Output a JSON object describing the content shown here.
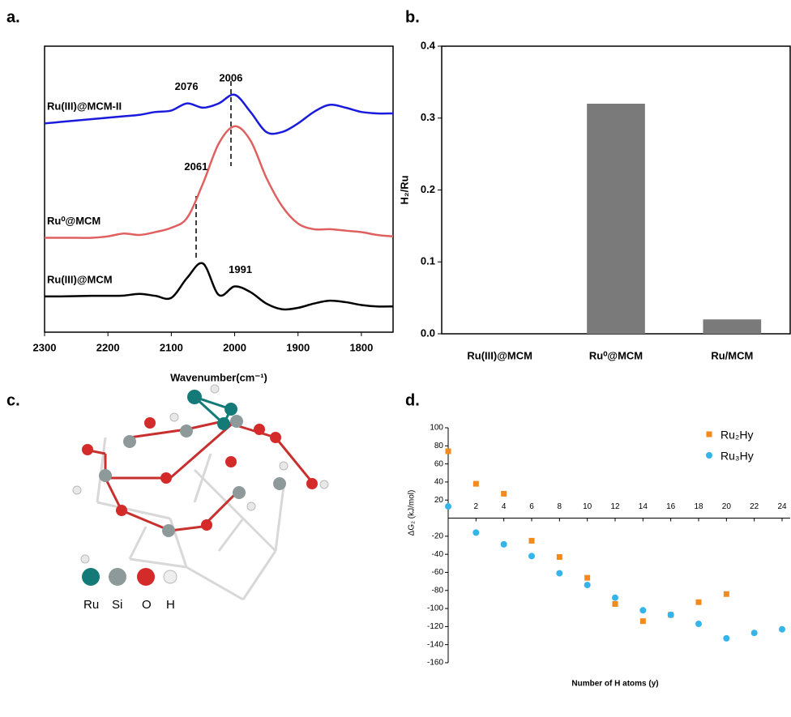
{
  "chart_data": [
    {
      "type": "line",
      "label": "a.",
      "xlabel": "Wavenumber(cm⁻¹)",
      "x": [
        2300,
        2275,
        2250,
        2225,
        2200,
        2175,
        2150,
        2125,
        2100,
        2075,
        2050,
        2025,
        2000,
        1975,
        1950,
        1925,
        1900,
        1875,
        1850,
        1825,
        1800,
        1775,
        1750
      ],
      "xlim": [
        2300,
        1750
      ],
      "xticks": [
        2300,
        2200,
        2100,
        2000,
        1900,
        1800
      ],
      "ylim": [
        0,
        10
      ],
      "series": [
        {
          "name": "Ru(III)@MCM-II",
          "color": "#1a1adc",
          "peaks": [
            2076,
            2006
          ],
          "values": [
            7.3,
            7.35,
            7.4,
            7.45,
            7.5,
            7.55,
            7.6,
            7.7,
            7.75,
            8.0,
            7.85,
            8.0,
            8.3,
            7.7,
            7.0,
            7.0,
            7.3,
            7.7,
            7.95,
            7.85,
            7.7,
            7.65,
            7.65
          ]
        },
        {
          "name": "Ru⁰@MCM",
          "color": "#e06060",
          "peaks": [
            2061
          ],
          "values": [
            3.3,
            3.3,
            3.3,
            3.3,
            3.35,
            3.45,
            3.4,
            3.5,
            3.65,
            4.0,
            5.2,
            6.6,
            7.2,
            6.7,
            5.4,
            4.4,
            3.8,
            3.6,
            3.6,
            3.55,
            3.5,
            3.4,
            3.35
          ]
        },
        {
          "name": "Ru(III)@MCM",
          "color": "#000000",
          "peaks": [
            1991
          ],
          "values": [
            1.25,
            1.25,
            1.26,
            1.27,
            1.27,
            1.28,
            1.34,
            1.27,
            1.2,
            1.9,
            2.4,
            1.3,
            1.6,
            1.4,
            1.0,
            0.8,
            0.85,
            1.0,
            1.1,
            1.05,
            0.95,
            0.9,
            0.9
          ]
        }
      ]
    },
    {
      "type": "bar",
      "label": "b.",
      "ylabel": "H₂/Ru",
      "categories": [
        "Ru(III)@MCM",
        "Ru⁰@MCM",
        "Ru/MCM"
      ],
      "values": [
        0,
        0.32,
        0.02
      ],
      "color": "#7a7a7a",
      "ylim": [
        0,
        0.4
      ],
      "yticks": [
        {
          "value": 0,
          "label": "0.0"
        },
        0.1,
        0.2,
        0.3,
        0.4
      ]
    },
    {
      "type": "scatter",
      "label": "d.",
      "xlabel": "Number of H atoms (y)",
      "ylabel": "ΔG₂ (kJ/mol)",
      "xlim": [
        0,
        24
      ],
      "xticks": [
        2,
        4,
        6,
        8,
        10,
        12,
        14,
        16,
        18,
        20,
        22,
        24
      ],
      "ylim": [
        -160,
        100
      ],
      "yticks": [
        -160,
        -140,
        -120,
        -100,
        -80,
        -60,
        -40,
        -20,
        20,
        40,
        60,
        80,
        100
      ],
      "legend": "upper right",
      "series": [
        {
          "name": "Ru₂Hy",
          "color": "#f28a1e",
          "marker": "square",
          "x": [
            0,
            2,
            4,
            6,
            8,
            10,
            12,
            14,
            16,
            18,
            20
          ],
          "values": [
            74,
            38,
            27,
            -25,
            -43,
            -66,
            -95,
            -114,
            -107,
            -93,
            -84
          ]
        },
        {
          "name": "Ru₃Hy",
          "color": "#35b4ea",
          "marker": "circle",
          "x": [
            0,
            2,
            4,
            6,
            8,
            10,
            12,
            14,
            16,
            18,
            20,
            22,
            24
          ],
          "values": [
            13,
            -16,
            -29,
            -42,
            -61,
            -74,
            -88,
            -102,
            -107,
            -117,
            -133,
            -127,
            -123
          ]
        }
      ]
    }
  ],
  "panel_c": {
    "label": "c.",
    "legend": [
      "Ru",
      "Si",
      "O",
      "H"
    ]
  }
}
